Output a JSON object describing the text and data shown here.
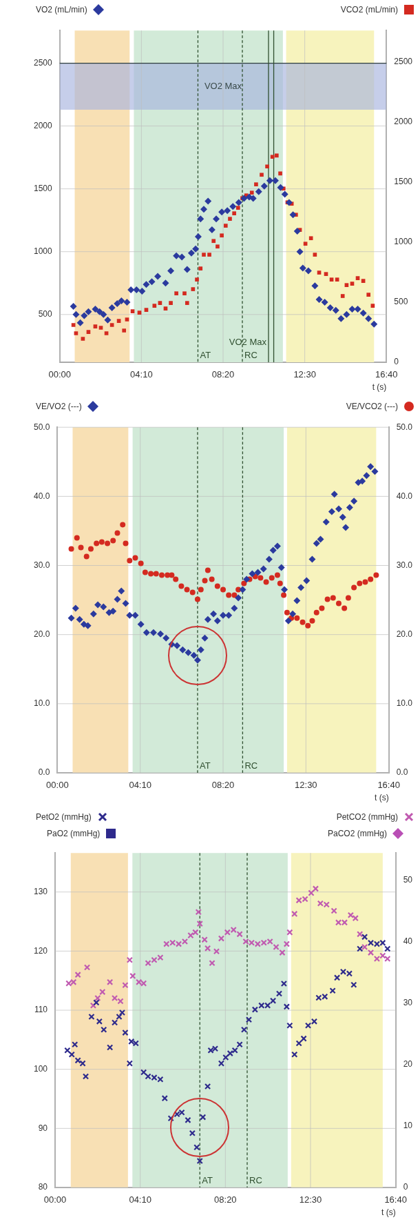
{
  "chart_data": [
    {
      "type": "scatter",
      "xlabel": "t (s)",
      "xlim": [
        0,
        1000
      ],
      "xticks": [
        {
          "value": 0,
          "label": "00:00"
        },
        {
          "value": 250,
          "label": "04:10"
        },
        {
          "value": 500,
          "label": "08:20"
        },
        {
          "value": 750,
          "label": "12:30"
        },
        {
          "value": 1000,
          "label": "16:40"
        }
      ],
      "ylim": [
        120,
        2760
      ],
      "yticks": [
        500,
        1000,
        1500,
        2000,
        2500
      ],
      "y2lim": [
        0,
        2760
      ],
      "y2ticks": [
        0,
        500,
        1000,
        1500,
        2000,
        2500
      ],
      "grid": true,
      "legend": "top",
      "bands": [
        {
          "axis": "x",
          "from": 46,
          "to": 214,
          "color": "#f8e0b4"
        },
        {
          "axis": "x",
          "from": 227,
          "to": 683,
          "color": "#d2ead8"
        },
        {
          "axis": "x",
          "from": 693,
          "to": 962,
          "color": "#f7f3bd"
        },
        {
          "axis": "y",
          "from": 2130,
          "to": 2500,
          "label": "VO2 Max",
          "color": "#a7b3de"
        }
      ],
      "ref_lines": [
        {
          "axis": "y",
          "value": 2500,
          "color": "#2f3f3f",
          "line_style": "solid"
        },
        {
          "axis": "x",
          "value": 423,
          "label": "AT",
          "color": "#2f4f2f",
          "line_style": "dashed"
        },
        {
          "axis": "x",
          "value": 559,
          "label": "RC",
          "color": "#2f4f2f",
          "line_style": "dashed"
        },
        {
          "axis": "x",
          "value": 639,
          "label": "VO2 Max",
          "color": "#2f4f2f",
          "line_style": "solid"
        },
        {
          "axis": "x",
          "value": 655,
          "color": "#2f4f2f",
          "line_style": "solid"
        }
      ],
      "series": [
        {
          "name": "VO2 (mL/min)",
          "color": "#2b3a9e",
          "marker": "diamond",
          "axis": "y",
          "x": [
            42,
            50,
            63,
            75,
            88,
            109,
            122,
            134,
            147,
            160,
            176,
            189,
            206,
            218,
            235,
            252,
            265,
            282,
            300,
            324,
            340,
            357,
            374,
            390,
            403,
            416,
            424,
            431,
            441,
            454,
            466,
            479,
            496,
            513,
            530,
            548,
            564,
            580,
            592,
            609,
            626,
            643,
            660,
            676,
            689,
            702,
            714,
            727,
            735,
            744,
            761,
            781,
            794,
            811,
            828,
            845,
            861,
            878,
            895,
            912,
            929,
            945,
            962
          ],
          "values": [
            565,
            500,
            435,
            490,
            522,
            543,
            522,
            500,
            457,
            554,
            587,
            609,
            598,
            696,
            696,
            685,
            739,
            761,
            804,
            750,
            848,
            967,
            957,
            859,
            989,
            1022,
            1120,
            1261,
            1337,
            1402,
            1174,
            1261,
            1315,
            1326,
            1359,
            1391,
            1424,
            1435,
            1424,
            1478,
            1522,
            1565,
            1565,
            1511,
            1457,
            1391,
            1294,
            1163,
            1000,
            870,
            848,
            728,
            620,
            598,
            554,
            533,
            467,
            500,
            543,
            543,
            511,
            467,
            424
          ]
        },
        {
          "name": "VCO2 (mL/min)",
          "color": "#d42a20",
          "marker": "square",
          "axis": "y2",
          "x": [
            42,
            50,
            71,
            88,
            109,
            126,
            143,
            160,
            181,
            197,
            206,
            223,
            244,
            265,
            290,
            307,
            324,
            340,
            357,
            382,
            390,
            408,
            420,
            431,
            441,
            458,
            471,
            483,
            496,
            508,
            521,
            534,
            546,
            559,
            571,
            588,
            601,
            618,
            635,
            651,
            664,
            675,
            685,
            697,
            710,
            723,
            735,
            752,
            769,
            781,
            794,
            815,
            832,
            849,
            866,
            878,
            895,
            912,
            929,
            945,
            958
          ],
          "values": [
            310,
            241,
            195,
            252,
            298,
            287,
            241,
            310,
            344,
            264,
            356,
            424,
            413,
            436,
            470,
            493,
            447,
            493,
            573,
            573,
            493,
            608,
            688,
            780,
            895,
            895,
            1009,
            963,
            1055,
            1136,
            1193,
            1239,
            1285,
            1365,
            1388,
            1411,
            1480,
            1560,
            1629,
            1709,
            1720,
            1571,
            1445,
            1330,
            1319,
            1227,
            1101,
            986,
            1032,
            895,
            746,
            734,
            688,
            688,
            551,
            642,
            654,
            700,
            677,
            562,
            470
          ]
        }
      ]
    },
    {
      "type": "scatter",
      "xlabel": "t (s)",
      "xlim": [
        0,
        1000
      ],
      "xticks": [
        {
          "value": 0,
          "label": "00:00"
        },
        {
          "value": 250,
          "label": "04:10"
        },
        {
          "value": 500,
          "label": "08:20"
        },
        {
          "value": 750,
          "label": "12:30"
        },
        {
          "value": 1000,
          "label": "16:40"
        }
      ],
      "ylim": [
        0,
        50
      ],
      "yticks": [
        {
          "value": 0,
          "label": "0.0"
        },
        {
          "value": 10,
          "label": "10.0"
        },
        {
          "value": 20,
          "label": "20.0"
        },
        {
          "value": 30,
          "label": "30.0"
        },
        {
          "value": 40,
          "label": "40.0"
        },
        {
          "value": 50,
          "label": "50.0"
        }
      ],
      "y2lim": [
        0,
        50
      ],
      "y2ticks": [
        {
          "value": 0,
          "label": "0.0"
        },
        {
          "value": 10,
          "label": "10.0"
        },
        {
          "value": 20,
          "label": "20.0"
        },
        {
          "value": 30,
          "label": "30.0"
        },
        {
          "value": 40,
          "label": "40.0"
        },
        {
          "value": 50,
          "label": "50.0"
        }
      ],
      "grid": true,
      "legend": "top",
      "bands": [
        {
          "axis": "x",
          "from": 46,
          "to": 214,
          "color": "#f8e0b4"
        },
        {
          "axis": "x",
          "from": 227,
          "to": 683,
          "color": "#d2ead8"
        },
        {
          "axis": "x",
          "from": 693,
          "to": 962,
          "color": "#f7f3bd"
        }
      ],
      "ref_lines": [
        {
          "axis": "x",
          "value": 423,
          "label": "AT",
          "color": "#2f4f2f",
          "line_style": "dashed"
        },
        {
          "axis": "x",
          "value": 559,
          "label": "RC",
          "color": "#2f4f2f",
          "line_style": "dashed"
        }
      ],
      "series": [
        {
          "name": "VE/VO2 (---)",
          "color": "#2b3a9e",
          "marker": "diamond",
          "axis": "y",
          "x": [
            42,
            55,
            67,
            80,
            92,
            109,
            122,
            139,
            156,
            168,
            181,
            193,
            206,
            218,
            235,
            252,
            269,
            290,
            311,
            328,
            345,
            361,
            378,
            395,
            412,
            423,
            433,
            445,
            454,
            471,
            483,
            500,
            517,
            534,
            546,
            559,
            571,
            588,
            605,
            622,
            639,
            651,
            664,
            676,
            685,
            697,
            710,
            723,
            735,
            752,
            769,
            782,
            794,
            811,
            828,
            836,
            849,
            861,
            870,
            882,
            895,
            908,
            920,
            933,
            945,
            958
          ],
          "values": [
            22.4,
            23.8,
            22.2,
            21.5,
            21.3,
            23.0,
            24.3,
            24.0,
            23.2,
            23.4,
            25.1,
            26.3,
            24.5,
            22.8,
            22.8,
            21.5,
            20.3,
            20.3,
            20.1,
            19.5,
            18.6,
            18.4,
            17.8,
            17.4,
            17.0,
            16.3,
            17.8,
            19.5,
            22.2,
            23.0,
            22.0,
            22.8,
            22.8,
            23.8,
            25.3,
            26.5,
            28.0,
            28.8,
            29.0,
            29.5,
            30.9,
            32.2,
            32.8,
            29.7,
            26.5,
            22.0,
            23.0,
            24.9,
            26.8,
            27.8,
            30.9,
            33.2,
            33.8,
            36.3,
            37.8,
            40.3,
            38.2,
            37.0,
            35.5,
            38.4,
            39.3,
            42.0,
            42.2,
            43.0,
            44.3,
            43.6
          ]
        },
        {
          "name": "VE/VCO2 (---)",
          "color": "#d42a20",
          "marker": "circle",
          "axis": "y2",
          "x": [
            42,
            59,
            71,
            88,
            101,
            118,
            134,
            151,
            168,
            181,
            197,
            206,
            218,
            235,
            252,
            265,
            282,
            298,
            315,
            332,
            345,
            357,
            374,
            391,
            408,
            423,
            433,
            445,
            454,
            466,
            483,
            500,
            517,
            534,
            546,
            563,
            580,
            597,
            613,
            630,
            647,
            664,
            672,
            683,
            693,
            706,
            723,
            740,
            756,
            769,
            782,
            798,
            815,
            832,
            849,
            866,
            878,
            895,
            912,
            929,
            945,
            962
          ],
          "values": [
            32.4,
            34.0,
            32.6,
            31.3,
            32.4,
            33.2,
            33.4,
            33.2,
            33.6,
            34.7,
            35.9,
            33.2,
            30.7,
            31.1,
            30.3,
            29.0,
            28.8,
            28.8,
            28.6,
            28.6,
            28.6,
            28.0,
            27.0,
            26.5,
            26.1,
            25.1,
            26.5,
            27.8,
            29.3,
            28.0,
            27.0,
            26.5,
            25.7,
            25.7,
            26.5,
            27.4,
            28.0,
            28.4,
            28.2,
            27.6,
            28.2,
            28.6,
            27.4,
            25.7,
            23.2,
            22.4,
            22.4,
            21.8,
            21.3,
            22.0,
            23.2,
            23.8,
            25.1,
            25.3,
            24.5,
            23.8,
            25.3,
            26.8,
            27.4,
            27.6,
            28.0,
            28.6
          ]
        }
      ]
    },
    {
      "type": "scatter",
      "xlabel": "t (s)",
      "xlim": [
        0,
        1000
      ],
      "xticks": [
        {
          "value": 0,
          "label": "00:00"
        },
        {
          "value": 250,
          "label": "04:10"
        },
        {
          "value": 500,
          "label": "08:20"
        },
        {
          "value": 750,
          "label": "12:30"
        },
        {
          "value": 1000,
          "label": "16:40"
        }
      ],
      "ylim": [
        80,
        136.6
      ],
      "yticks": [
        80,
        90,
        100,
        110,
        120,
        130
      ],
      "y2lim": [
        0,
        54.4
      ],
      "y2ticks": [
        0,
        10,
        20,
        30,
        40,
        50
      ],
      "grid": true,
      "legend": "top",
      "bands": [
        {
          "axis": "x",
          "from": 46,
          "to": 214,
          "color": "#f8e0b4"
        },
        {
          "axis": "x",
          "from": 227,
          "to": 683,
          "color": "#d2ead8"
        },
        {
          "axis": "x",
          "from": 693,
          "to": 962,
          "color": "#f7f3bd"
        }
      ],
      "ref_lines": [
        {
          "axis": "x",
          "value": 425,
          "label": "AT",
          "color": "#2f4f2f",
          "line_style": "dashed"
        },
        {
          "axis": "x",
          "value": 564,
          "label": "RC",
          "color": "#2f4f2f",
          "line_style": "dashed"
        }
      ],
      "series": [
        {
          "name": "PetO2 (mmHg)",
          "color": "#2e2a8c",
          "marker": "cross",
          "axis": "y",
          "x": [
            36,
            49,
            58,
            67,
            81,
            90,
            107,
            121,
            130,
            143,
            161,
            175,
            188,
            197,
            206,
            219,
            224,
            237,
            260,
            273,
            291,
            309,
            322,
            340,
            358,
            372,
            390,
            403,
            416,
            425,
            434,
            448,
            457,
            470,
            488,
            501,
            514,
            528,
            542,
            555,
            569,
            587,
            606,
            624,
            640,
            658,
            672,
            680,
            689,
            703,
            716,
            730,
            743,
            761,
            774,
            792,
            815,
            828,
            846,
            864,
            877,
            895,
            909,
            927,
            945,
            962,
            976
          ],
          "values": [
            103.2,
            102.5,
            104.2,
            101.5,
            101.0,
            98.8,
            108.9,
            111.3,
            108.1,
            106.7,
            103.7,
            107.9,
            108.9,
            109.6,
            106.2,
            101.0,
            104.7,
            104.4,
            99.5,
            98.8,
            98.6,
            98.3,
            95.1,
            91.7,
            92.4,
            92.7,
            91.4,
            89.2,
            86.8,
            84.5,
            91.9,
            97.1,
            103.2,
            103.5,
            101.0,
            102.0,
            102.7,
            103.2,
            104.2,
            106.7,
            108.4,
            110.1,
            110.8,
            110.8,
            111.6,
            112.8,
            114.5,
            110.6,
            107.4,
            102.5,
            104.4,
            105.2,
            107.4,
            108.1,
            112.1,
            112.3,
            113.3,
            115.5,
            116.5,
            116.2,
            114.3,
            120.4,
            122.4,
            121.4,
            121.2,
            121.4,
            120.4
          ]
        },
        {
          "name": "PaO2 (mmHg)",
          "color": "#2e2a8c",
          "marker": "square",
          "axis": "y"
        },
        {
          "name": "PetCO2 (mmHg)",
          "color": "#c05ab0",
          "marker": "cross",
          "axis": "y2",
          "x": [
            40,
            54,
            67,
            94,
            112,
            125,
            139,
            161,
            175,
            192,
            206,
            219,
            228,
            246,
            260,
            273,
            291,
            309,
            327,
            345,
            363,
            381,
            398,
            412,
            421,
            425,
            439,
            448,
            461,
            474,
            488,
            506,
            524,
            542,
            560,
            577,
            595,
            613,
            631,
            649,
            667,
            680,
            689,
            703,
            716,
            734,
            752,
            765,
            779,
            797,
            819,
            832,
            850,
            868,
            882,
            895,
            909,
            927,
            945,
            962,
            976
          ],
          "values": [
            33.2,
            33.4,
            34.6,
            35.8,
            29.6,
            30.8,
            31.8,
            33.4,
            30.8,
            30.3,
            32.9,
            37.0,
            34.4,
            33.4,
            33.2,
            36.5,
            37.0,
            37.4,
            39.6,
            39.8,
            39.6,
            40.0,
            41.0,
            41.5,
            44.8,
            42.9,
            40.3,
            38.9,
            36.5,
            38.4,
            40.5,
            41.5,
            41.9,
            41.2,
            40.0,
            39.8,
            39.6,
            39.8,
            40.0,
            39.1,
            38.2,
            39.6,
            41.5,
            44.5,
            46.7,
            46.9,
            47.9,
            48.6,
            46.2,
            46.0,
            45.0,
            43.1,
            43.1,
            44.3,
            43.8,
            41.2,
            39.1,
            38.2,
            37.2,
            37.7,
            37.2
          ]
        },
        {
          "name": "PaCO2 (mmHg)",
          "color": "#b94fb5",
          "marker": "diamond",
          "axis": "y2"
        }
      ]
    }
  ]
}
